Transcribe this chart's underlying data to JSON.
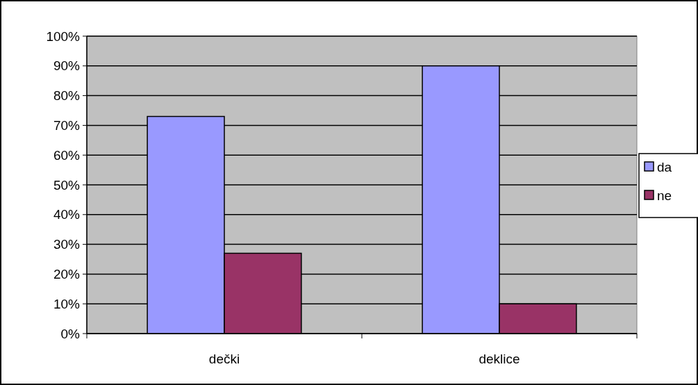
{
  "chart_data": {
    "type": "bar",
    "categories": [
      "dečki",
      "deklice"
    ],
    "series": [
      {
        "name": "da",
        "color": "#9999ff",
        "values": [
          73,
          90
        ]
      },
      {
        "name": "ne",
        "color": "#993366",
        "values": [
          27,
          10
        ]
      }
    ],
    "ylim": [
      0,
      100
    ],
    "yticks": [
      {
        "value": 0,
        "label": "0%"
      },
      {
        "value": 10,
        "label": "10%"
      },
      {
        "value": 20,
        "label": "20%"
      },
      {
        "value": 30,
        "label": "30%"
      },
      {
        "value": 40,
        "label": "40%"
      },
      {
        "value": 50,
        "label": "50%"
      },
      {
        "value": 60,
        "label": "60%"
      },
      {
        "value": 70,
        "label": "70%"
      },
      {
        "value": 80,
        "label": "80%"
      },
      {
        "value": 90,
        "label": "90%"
      },
      {
        "value": 100,
        "label": "100%"
      }
    ],
    "grid": "y",
    "legend": "right"
  }
}
